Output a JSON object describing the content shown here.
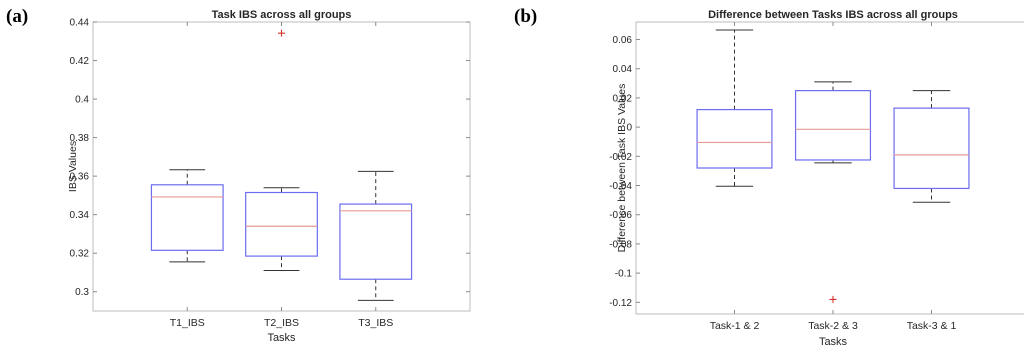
{
  "panels": {
    "a": {
      "label": "(a)"
    },
    "b": {
      "label": "(b)"
    }
  },
  "chart_data": [
    {
      "type": "box",
      "title": "Task IBS across all groups",
      "xlabel": "Tasks",
      "ylabel": "IBS Values",
      "ylim": [
        0.29,
        0.44
      ],
      "yticks": [
        0.3,
        0.32,
        0.34,
        0.36,
        0.38,
        0.4,
        0.42,
        0.44
      ],
      "ytick_labels": [
        "0.3",
        "0.32",
        "0.34",
        "0.36",
        "0.38",
        "0.4",
        "0.42",
        "0.44"
      ],
      "categories": [
        "T1_IBS",
        "T2_IBS",
        "T3_IBS"
      ],
      "boxes": [
        {
          "whisker_low": 0.3155,
          "q1": 0.3215,
          "median": 0.3492,
          "q3": 0.3555,
          "whisker_high": 0.3633,
          "outliers": []
        },
        {
          "whisker_low": 0.311,
          "q1": 0.3185,
          "median": 0.334,
          "q3": 0.3515,
          "whisker_high": 0.354,
          "outliers": [
            0.4342
          ]
        },
        {
          "whisker_low": 0.2955,
          "q1": 0.3065,
          "median": 0.342,
          "q3": 0.3455,
          "whisker_high": 0.3625,
          "outliers": []
        }
      ],
      "grid": false,
      "colors": {
        "box": "#6c6cf0",
        "median": "#e89b95",
        "whisker": "#333333",
        "outlier": "#d4342a"
      }
    },
    {
      "type": "box",
      "title": "Difference between Tasks IBS across all groups",
      "xlabel": "Tasks",
      "ylabel": "Difference between Task IBS Values",
      "ylim": [
        -0.128,
        0.072
      ],
      "yticks": [
        0.06,
        0.04,
        0.02,
        0,
        -0.02,
        -0.04,
        -0.06,
        -0.08,
        -0.1,
        -0.12
      ],
      "ytick_labels": [
        "0.06",
        "0.04",
        "0.02",
        "0",
        "-0.02",
        "-0.04",
        "-0.06",
        "-0.08",
        "-0.1",
        "-0.12"
      ],
      "categories": [
        "Task-1 & 2",
        "Task-2 & 3",
        "Task-3 & 1"
      ],
      "boxes": [
        {
          "whisker_low": -0.0405,
          "q1": -0.028,
          "median": -0.0105,
          "q3": 0.012,
          "whisker_high": 0.0665,
          "outliers": []
        },
        {
          "whisker_low": -0.0245,
          "q1": -0.0225,
          "median": -0.0015,
          "q3": 0.025,
          "whisker_high": 0.031,
          "outliers": [
            -0.118
          ]
        },
        {
          "whisker_low": -0.0515,
          "q1": -0.042,
          "median": -0.019,
          "q3": 0.013,
          "whisker_high": 0.025,
          "outliers": []
        }
      ],
      "grid": false,
      "colors": {
        "box": "#6c6cf0",
        "median": "#e89b95",
        "whisker": "#333333",
        "outlier": "#d4342a"
      }
    }
  ]
}
